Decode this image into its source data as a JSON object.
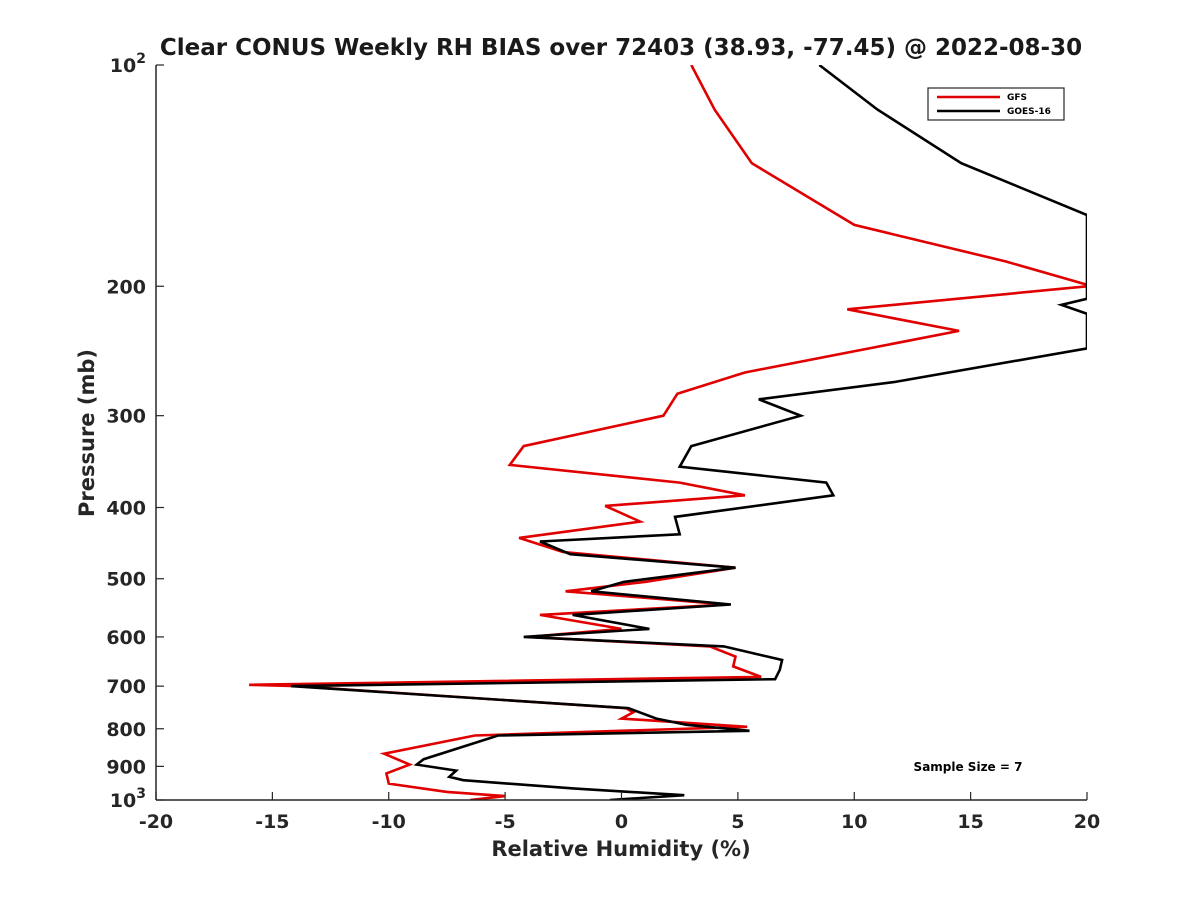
{
  "chart_data": {
    "type": "line",
    "title": "Clear CONUS Weekly RH BIAS over 72403 (38.93, -77.45) @ 2022-08-30",
    "xlabel": "Relative Humidity (%)",
    "ylabel": "Pressure (mb)",
    "xlim": [
      -20,
      20
    ],
    "ylim": [
      100,
      1000
    ],
    "y_scale": "log",
    "y_reversed": true,
    "x_ticks": [
      {
        "value": -20,
        "label": "-20"
      },
      {
        "value": -15,
        "label": "-15"
      },
      {
        "value": -10,
        "label": "-10"
      },
      {
        "value": -5,
        "label": "-5"
      },
      {
        "value": 0,
        "label": "0"
      },
      {
        "value": 5,
        "label": "5"
      },
      {
        "value": 10,
        "label": "10"
      },
      {
        "value": 15,
        "label": "15"
      },
      {
        "value": 20,
        "label": "20"
      }
    ],
    "y_ticks": [
      {
        "value": 100,
        "base": "10",
        "exp": "2"
      },
      {
        "value": 200,
        "base": "200",
        "exp": ""
      },
      {
        "value": 300,
        "base": "300",
        "exp": ""
      },
      {
        "value": 400,
        "base": "400",
        "exp": ""
      },
      {
        "value": 500,
        "base": "500",
        "exp": ""
      },
      {
        "value": 600,
        "base": "600",
        "exp": ""
      },
      {
        "value": 700,
        "base": "700",
        "exp": ""
      },
      {
        "value": 800,
        "base": "800",
        "exp": ""
      },
      {
        "value": 900,
        "base": "900",
        "exp": ""
      },
      {
        "value": 1000,
        "base": "10",
        "exp": "3"
      }
    ],
    "grid": false,
    "legend_position": "top-right",
    "annotation": "Sample Size = 7",
    "series": [
      {
        "name": "GFS",
        "color": "#e00000",
        "points": [
          [
            3,
            100
          ],
          [
            4,
            115
          ],
          [
            5.6,
            136
          ],
          [
            10,
            165
          ],
          [
            16.5,
            185
          ],
          [
            20,
            199
          ],
          [
            20,
            200
          ],
          [
            9.7,
            215
          ],
          [
            14.5,
            230
          ],
          [
            5.3,
            262
          ],
          [
            2.4,
            280
          ],
          [
            1.8,
            300
          ],
          [
            -4.2,
            330
          ],
          [
            -4.8,
            350
          ],
          [
            2.5,
            370
          ],
          [
            5.3,
            385
          ],
          [
            -0.7,
            398
          ],
          [
            0.8,
            418
          ],
          [
            -4.4,
            440
          ],
          [
            -2.5,
            460
          ],
          [
            4.9,
            483
          ],
          [
            1,
            505
          ],
          [
            -2.4,
            520
          ],
          [
            4.5,
            542
          ],
          [
            -3.5,
            560
          ],
          [
            0,
            585
          ],
          [
            -4,
            600
          ],
          [
            3.8,
            618
          ],
          [
            4.9,
            638
          ],
          [
            4.8,
            658
          ],
          [
            6,
            680
          ],
          [
            -16,
            697
          ],
          [
            -14,
            700
          ],
          [
            0.2,
            750
          ],
          [
            0.5,
            760
          ],
          [
            0,
            775
          ],
          [
            5.4,
            795
          ],
          [
            -6.3,
            817
          ],
          [
            -10.2,
            865
          ],
          [
            -9.1,
            895
          ],
          [
            -10.1,
            920
          ],
          [
            -10,
            950
          ],
          [
            -7.5,
            975
          ],
          [
            -5,
            988
          ],
          [
            -6.5,
            1000
          ]
        ]
      },
      {
        "name": "GOES-16",
        "color": "#000000",
        "points": [
          [
            8.5,
            100
          ],
          [
            11,
            115
          ],
          [
            14.6,
            136
          ],
          [
            20,
            160
          ],
          [
            20,
            208
          ],
          [
            18.9,
            212
          ],
          [
            20,
            218
          ],
          [
            20,
            243
          ],
          [
            11.7,
            270
          ],
          [
            5.9,
            285
          ],
          [
            7.7,
            300
          ],
          [
            3,
            330
          ],
          [
            2.5,
            352
          ],
          [
            8.8,
            370
          ],
          [
            9.1,
            385
          ],
          [
            2.3,
            412
          ],
          [
            2.5,
            435
          ],
          [
            -3.5,
            445
          ],
          [
            -2.2,
            463
          ],
          [
            4.9,
            483
          ],
          [
            0.1,
            505
          ],
          [
            -1.3,
            520
          ],
          [
            4.7,
            542
          ],
          [
            -2.1,
            560
          ],
          [
            1.2,
            585
          ],
          [
            -4.2,
            600
          ],
          [
            4.4,
            618
          ],
          [
            6.9,
            645
          ],
          [
            6.8,
            665
          ],
          [
            6.6,
            685
          ],
          [
            -14.2,
            700
          ],
          [
            0.3,
            750
          ],
          [
            1.5,
            775
          ],
          [
            2.8,
            790
          ],
          [
            5.5,
            805
          ],
          [
            -5.3,
            817
          ],
          [
            -8.5,
            880
          ],
          [
            -8.8,
            895
          ],
          [
            -7.1,
            912
          ],
          [
            -7.4,
            930
          ],
          [
            -6.8,
            940
          ],
          [
            -2,
            965
          ],
          [
            2.7,
            985
          ],
          [
            -0.5,
            1000
          ]
        ]
      }
    ]
  }
}
